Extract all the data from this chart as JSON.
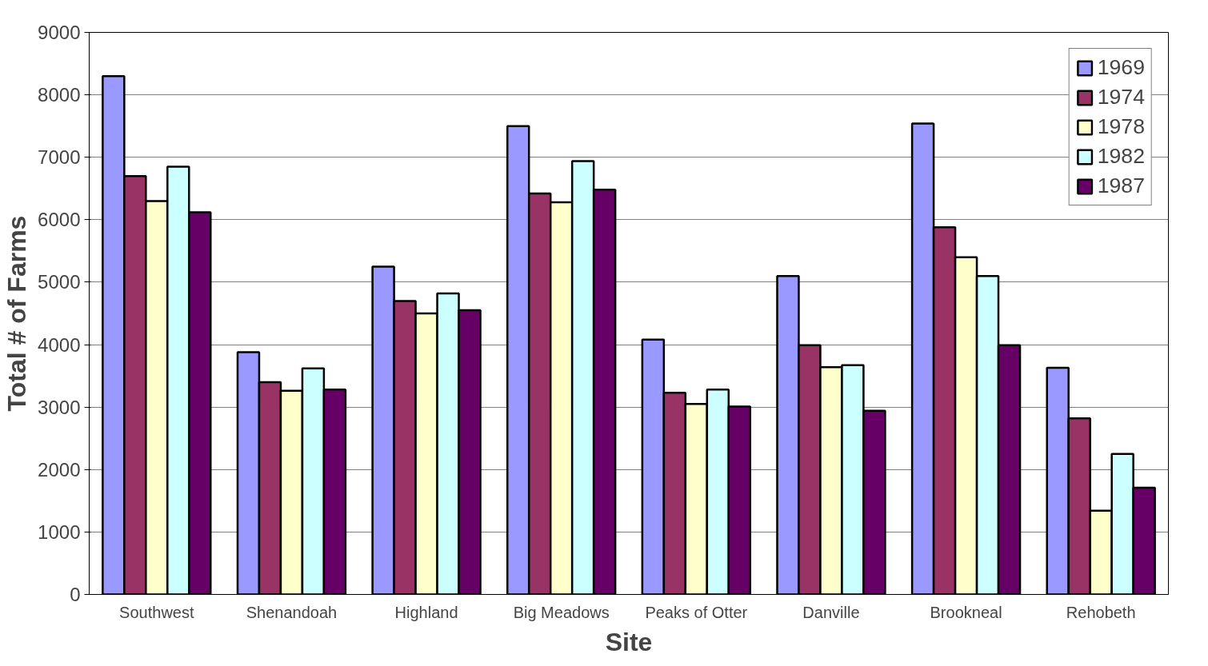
{
  "chart_data": {
    "type": "bar",
    "xlabel": "Site",
    "ylabel": "Total # of Farms",
    "categories": [
      "Southwest",
      "Shenandoah",
      "Highland",
      "Big Meadows",
      "Peaks of Otter",
      "Danville",
      "Brookneal",
      "Rehobeth"
    ],
    "series": [
      {
        "name": "1969",
        "color": "#9999ff",
        "values": [
          8300,
          3880,
          5250,
          7500,
          4080,
          5100,
          7540,
          3630
        ]
      },
      {
        "name": "1974",
        "color": "#993366",
        "values": [
          6700,
          3400,
          4700,
          6420,
          3230,
          3990,
          5880,
          2820
        ]
      },
      {
        "name": "1978",
        "color": "#ffffcc",
        "values": [
          6300,
          3260,
          4500,
          6280,
          3050,
          3640,
          5400,
          1340
        ]
      },
      {
        "name": "1982",
        "color": "#ccffff",
        "values": [
          6850,
          3620,
          4820,
          6940,
          3280,
          3670,
          5100,
          2250
        ]
      },
      {
        "name": "1987",
        "color": "#660066",
        "values": [
          6120,
          3280,
          4550,
          6480,
          3010,
          2940,
          3990,
          1710
        ]
      }
    ],
    "ylim": [
      0,
      9000
    ],
    "yticks": [
      0,
      1000,
      2000,
      3000,
      4000,
      5000,
      6000,
      7000,
      8000,
      9000
    ],
    "grid": "y",
    "legend": "top right"
  }
}
